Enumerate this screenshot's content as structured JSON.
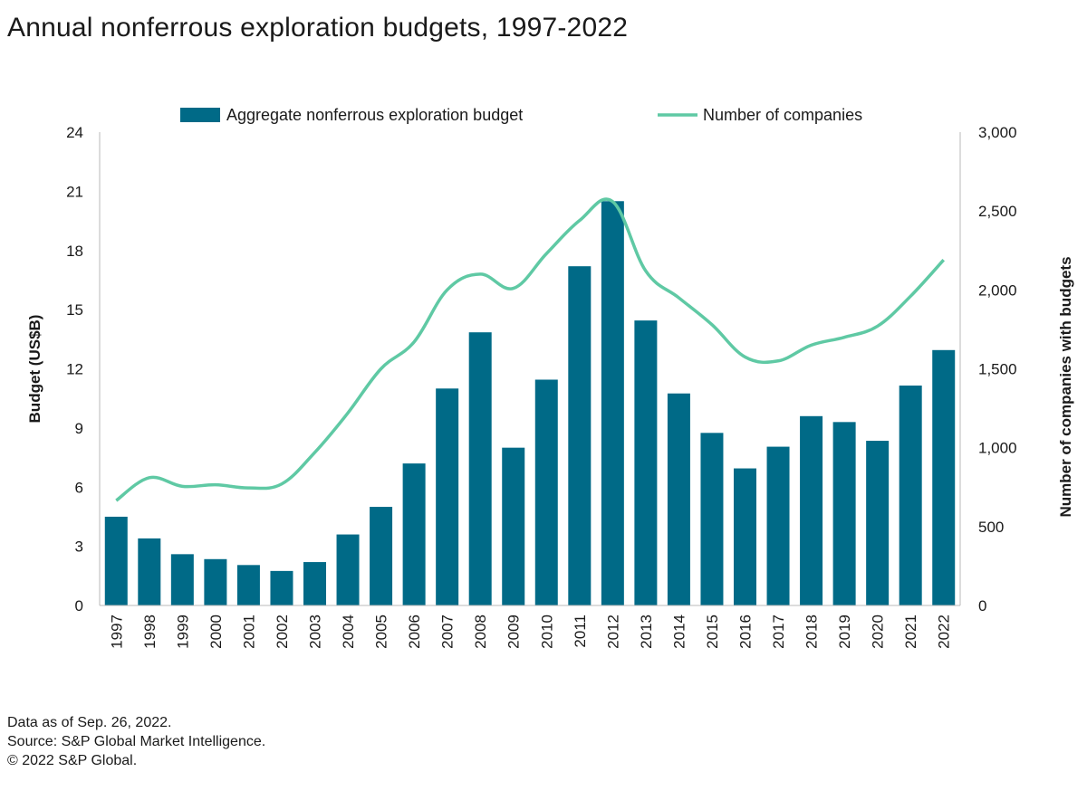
{
  "title": "Annual nonferrous exploration budgets, 1997-2022",
  "footer": {
    "line1": "Data as of Sep. 26, 2022.",
    "line2": "Source: S&P Global Market Intelligence.",
    "line3": "© 2022 S&P Global."
  },
  "colors": {
    "bar": "#006a87",
    "line": "#5fc9a4",
    "axis": "#b8b8b8",
    "text": "#1a1a1a"
  },
  "chart_data": {
    "type": "bar",
    "categories": [
      "1997",
      "1998",
      "1999",
      "2000",
      "2001",
      "2002",
      "2003",
      "2004",
      "2005",
      "2006",
      "2007",
      "2008",
      "2009",
      "2010",
      "2011",
      "2012",
      "2013",
      "2014",
      "2015",
      "2016",
      "2017",
      "2018",
      "2019",
      "2020",
      "2021",
      "2022"
    ],
    "series": [
      {
        "name": "Aggregate nonferrous exploration budget",
        "type": "bar",
        "axis": "left",
        "values": [
          4.5,
          3.4,
          2.6,
          2.35,
          2.05,
          1.75,
          2.2,
          3.6,
          5.0,
          7.2,
          11.0,
          13.85,
          8.0,
          11.45,
          17.2,
          20.5,
          14.45,
          10.75,
          8.75,
          6.95,
          8.05,
          9.6,
          9.3,
          8.35,
          11.15,
          12.95
        ]
      },
      {
        "name": "Number of companies",
        "type": "line",
        "axis": "right",
        "values": [
          665,
          810,
          755,
          765,
          745,
          770,
          970,
          1220,
          1500,
          1670,
          2000,
          2100,
          2010,
          2230,
          2440,
          2560,
          2120,
          1950,
          1780,
          1575,
          1550,
          1650,
          1700,
          1770,
          1960,
          2190
        ]
      }
    ],
    "ylabel": "Budget (US$B)",
    "ylim": [
      0,
      24
    ],
    "yticks": [
      "0",
      "3",
      "6",
      "9",
      "12",
      "15",
      "18",
      "21",
      "24"
    ],
    "y2label": "Number of companies with budgets",
    "y2lim": [
      0,
      3000
    ],
    "y2ticks": [
      "0",
      "500",
      "1,000",
      "1,500",
      "2,000",
      "2,500",
      "3,000"
    ],
    "legend_position": "top",
    "grid": false
  }
}
